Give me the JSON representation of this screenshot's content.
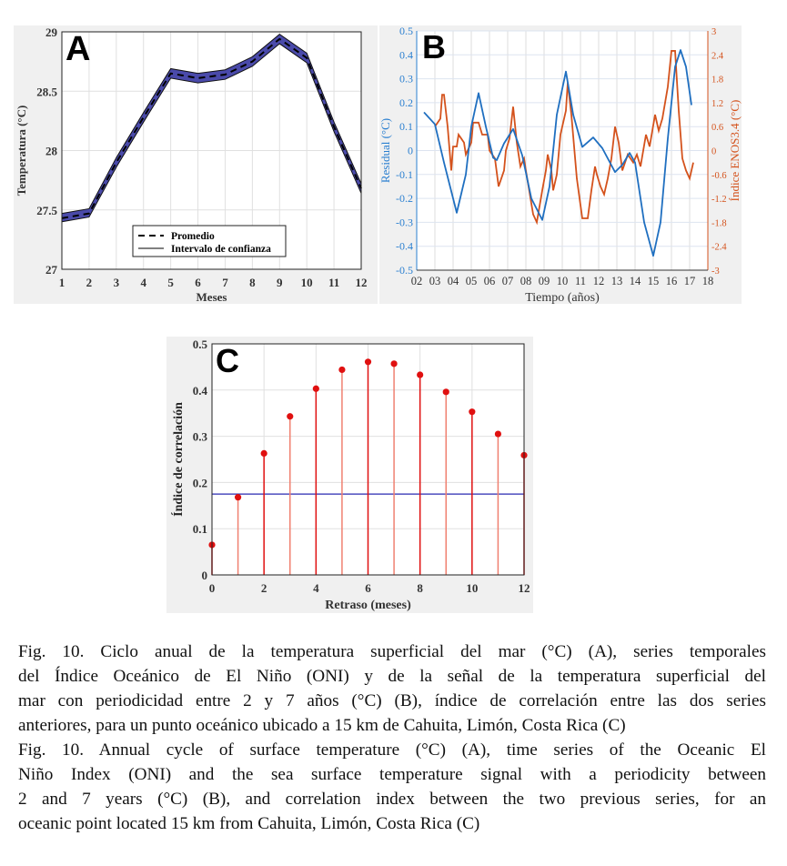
{
  "chart_data": [
    {
      "panel": "A",
      "type": "line",
      "xlabel": "Meses",
      "ylabel": "Temperatura (°C)",
      "xlim": [
        1,
        12
      ],
      "ylim": [
        27,
        29
      ],
      "xticks": [
        1,
        2,
        3,
        4,
        5,
        6,
        7,
        8,
        9,
        10,
        11,
        12
      ],
      "yticks": [
        27,
        27.5,
        28,
        28.5,
        29
      ],
      "grid": true,
      "legend": {
        "placement": "bottom-center",
        "entries": [
          "Promedio",
          "Intervalo de confianza"
        ]
      },
      "x": [
        1,
        2,
        3,
        4,
        5,
        6,
        7,
        8,
        9,
        10,
        11,
        12
      ],
      "series": [
        {
          "name": "Promedio",
          "values": [
            27.43,
            27.47,
            27.9,
            28.28,
            28.65,
            28.61,
            28.64,
            28.75,
            28.94,
            28.78,
            28.2,
            27.68
          ],
          "style": "dashed",
          "color": "#000000"
        },
        {
          "name": "Intervalo de confianza",
          "lower": [
            27.4,
            27.44,
            27.86,
            28.24,
            28.61,
            28.57,
            28.6,
            28.71,
            28.9,
            28.74,
            28.16,
            27.64
          ],
          "upper": [
            27.47,
            27.51,
            27.94,
            28.32,
            28.69,
            28.65,
            28.68,
            28.79,
            28.98,
            28.82,
            28.24,
            27.72
          ],
          "color": "#4a4aaa"
        }
      ]
    },
    {
      "panel": "B",
      "type": "line",
      "xlabel": "Tiempo (años)",
      "ylabel": "Residual (°C)",
      "ylabel_right": "Índice ENOS3.4 (°C)",
      "xlim": [
        2,
        18
      ],
      "ylim": [
        -0.5,
        0.5
      ],
      "ylim_right": [
        -3,
        3
      ],
      "xticks": [
        "02",
        "03",
        "04",
        "05",
        "06",
        "07",
        "08",
        "09",
        "10",
        "11",
        "12",
        "13",
        "14",
        "15",
        "16",
        "17",
        "18"
      ],
      "yticks": [
        -0.5,
        -0.4,
        -0.3,
        -0.2,
        -0.1,
        0,
        0.1,
        0.2,
        0.3,
        0.4,
        0.5
      ],
      "yticks_right": [
        "-3",
        "-2.4",
        "-1.8",
        "-1.2",
        "-0.6",
        "0",
        "0.6",
        "1.2",
        "1.8",
        "2.4",
        "3"
      ],
      "grid": true,
      "series": [
        {
          "axis": "left",
          "color": "#1f6fc0",
          "x": [
            2.4,
            3.0,
            3.5,
            4.2,
            4.7,
            5.0,
            5.4,
            5.8,
            6.2,
            6.4,
            6.8,
            7.3,
            7.8,
            8.3,
            8.9,
            9.3,
            9.7,
            10.2,
            10.6,
            11.1,
            11.7,
            12.2,
            12.9,
            13.3,
            13.7,
            14.0,
            14.5,
            15.0,
            15.4,
            15.8,
            16.2,
            16.5,
            16.8,
            17.1
          ],
          "values": [
            0.16,
            0.11,
            -0.05,
            -0.26,
            -0.1,
            0.1,
            0.24,
            0.1,
            -0.03,
            -0.04,
            0.03,
            0.09,
            -0.02,
            -0.2,
            -0.29,
            -0.15,
            0.15,
            0.33,
            0.15,
            0.015,
            0.055,
            0.01,
            -0.09,
            -0.06,
            -0.01,
            -0.05,
            -0.3,
            -0.44,
            -0.3,
            0.05,
            0.35,
            0.42,
            0.35,
            0.19
          ]
        },
        {
          "axis": "right",
          "color": "#d4521c",
          "x": [
            3.0,
            3.3,
            3.4,
            3.5,
            3.7,
            3.9,
            4.0,
            4.2,
            4.3,
            4.6,
            4.7,
            5.0,
            5.1,
            5.4,
            5.6,
            5.9,
            6.0,
            6.3,
            6.5,
            6.8,
            6.9,
            7.1,
            7.3,
            7.5,
            7.7,
            7.9,
            8.0,
            8.4,
            8.6,
            8.9,
            9.1,
            9.2,
            9.4,
            9.5,
            9.7,
            9.9,
            10.0,
            10.2,
            10.3,
            10.5,
            10.8,
            11.1,
            11.4,
            11.6,
            11.8,
            11.9,
            12.1,
            12.3,
            12.5,
            12.7,
            12.9,
            13.1,
            13.3,
            13.6,
            13.9,
            14.1,
            14.3,
            14.6,
            14.8,
            15.1,
            15.3,
            15.5,
            15.8,
            16.0,
            16.2,
            16.4,
            16.6,
            16.8,
            17.0,
            17.2
          ],
          "values": [
            0.6,
            0.8,
            1.4,
            1.4,
            0.6,
            -0.5,
            0.1,
            0.1,
            0.4,
            0.2,
            -0.1,
            0.2,
            0.7,
            0.7,
            0.4,
            0.4,
            0,
            -0.2,
            -0.9,
            -0.5,
            0,
            0.3,
            1.1,
            0.2,
            -0.4,
            -0.2,
            -0.5,
            -1.6,
            -1.8,
            -1.0,
            -0.5,
            -0.1,
            -0.5,
            -1.0,
            -0.6,
            0.4,
            0.6,
            1.0,
            1.7,
            0.9,
            -0.7,
            -1.7,
            -1.7,
            -1.0,
            -0.4,
            -0.6,
            -0.9,
            -1.1,
            -0.7,
            -0.2,
            0.6,
            0.2,
            -0.5,
            -0.1,
            -0.3,
            -0.1,
            -0.4,
            0.4,
            0.1,
            0.9,
            0.5,
            0.8,
            1.6,
            2.5,
            2.5,
            1.0,
            -0.2,
            -0.5,
            -0.7,
            -0.3
          ]
        }
      ]
    },
    {
      "panel": "C",
      "type": "stem",
      "xlabel": "Retraso (meses)",
      "ylabel": "Índice de correlación",
      "xlim": [
        0,
        12
      ],
      "ylim": [
        0,
        0.5
      ],
      "xticks": [
        0,
        2,
        4,
        6,
        8,
        10,
        12
      ],
      "yticks": [
        0,
        0.1,
        0.2,
        0.3,
        0.4,
        0.5
      ],
      "grid": true,
      "x": [
        0,
        1,
        2,
        3,
        4,
        5,
        6,
        7,
        8,
        9,
        10,
        11,
        12
      ],
      "values": [
        0.065,
        0.168,
        0.263,
        0.343,
        0.403,
        0.444,
        0.461,
        0.457,
        0.433,
        0.396,
        0.353,
        0.305,
        0.259
      ],
      "threshold": 0.175,
      "color": "#e01010",
      "threshold_color": "#2a2ab0"
    }
  ],
  "caption": {
    "lines": [
      "Fig. 10. Ciclo anual de la temperatura superficial del mar (°C) (A), series temporales",
      "del Índice Oceánico de El Niño (ONI) y de la señal de la temperatura superficial del",
      "mar con periodicidad entre 2 y 7 años (°C) (B), índice de correlación entre las dos series",
      "anteriores, para un punto oceánico ubicado a 15 km de Cahuita, Limón, Costa Rica (C)",
      "Fig. 10. Annual cycle of surface temperature (°C) (A), time series of the Oceanic El",
      "Niño Index (ONI) and the sea surface temperature signal with a periodicity between",
      "2 and 7 years (°C) (B), and correlation index between the two previous series, for an",
      "oceanic point located 15 km from Cahuita, Limón, Costa Rica (C)"
    ]
  }
}
